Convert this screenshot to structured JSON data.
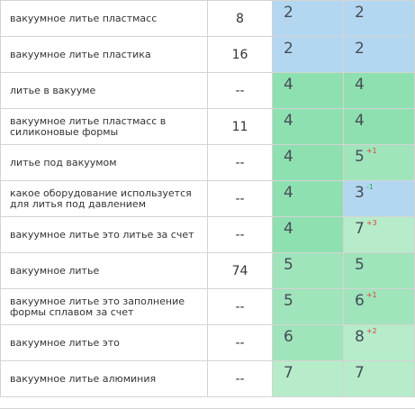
{
  "rows": [
    {
      "query": "вакуумное литье пластмасс",
      "freq": "8",
      "pos1": "2",
      "pos2": "2",
      "delta2": "",
      "delta2_dir": "",
      "c1": "blue",
      "c2": "blue"
    },
    {
      "query": "вакуумное литье пластика",
      "freq": "16",
      "pos1": "2",
      "pos2": "2",
      "delta2": "",
      "delta2_dir": "",
      "c1": "blue",
      "c2": "blue"
    },
    {
      "query": "литье в вакууме",
      "freq": "--",
      "pos1": "4",
      "pos2": "4",
      "delta2": "",
      "delta2_dir": "",
      "c1": "green-dark",
      "c2": "green-dark"
    },
    {
      "query": "вакуумное литье пластмасс в силиконовые формы",
      "freq": "11",
      "pos1": "4",
      "pos2": "4",
      "delta2": "",
      "delta2_dir": "",
      "c1": "green-dark",
      "c2": "green-dark"
    },
    {
      "query": "литье под вакуумом",
      "freq": "--",
      "pos1": "4",
      "pos2": "5",
      "delta2": "+1",
      "delta2_dir": "down",
      "c1": "green-dark",
      "c2": "green-mid"
    },
    {
      "query": "какое оборудование используется для литья под давлением",
      "freq": "--",
      "pos1": "4",
      "pos2": "3",
      "delta2": "-1",
      "delta2_dir": "up",
      "c1": "green-dark",
      "c2": "blue"
    },
    {
      "query": "вакуумное литье это литье за счет",
      "freq": "--",
      "pos1": "4",
      "pos2": "7",
      "delta2": "+3",
      "delta2_dir": "down",
      "c1": "green-dark",
      "c2": "green-light"
    },
    {
      "query": "вакуумное литье",
      "freq": "74",
      "pos1": "5",
      "pos2": "5",
      "delta2": "",
      "delta2_dir": "",
      "c1": "green-mid",
      "c2": "green-mid"
    },
    {
      "query": "вакуумное литье это заполнение формы сплавом за счет",
      "freq": "--",
      "pos1": "5",
      "pos2": "6",
      "delta2": "+1",
      "delta2_dir": "down",
      "c1": "green-mid",
      "c2": "green-mid"
    },
    {
      "query": "вакуумное литье это",
      "freq": "--",
      "pos1": "6",
      "pos2": "8",
      "delta2": "+2",
      "delta2_dir": "down",
      "c1": "green-mid",
      "c2": "green-light"
    },
    {
      "query": "вакуумное литье алюминия",
      "freq": "--",
      "pos1": "7",
      "pos2": "7",
      "delta2": "",
      "delta2_dir": "",
      "c1": "green-light",
      "c2": "green-light"
    }
  ],
  "colors": {
    "blue": "#b3d7f0",
    "green-dark": "#8fe0b0",
    "green-mid": "#9fe4bb",
    "green-light": "#b6ecc9",
    "delta_worse": "#e03c3c",
    "delta_better": "#2ca84c"
  }
}
